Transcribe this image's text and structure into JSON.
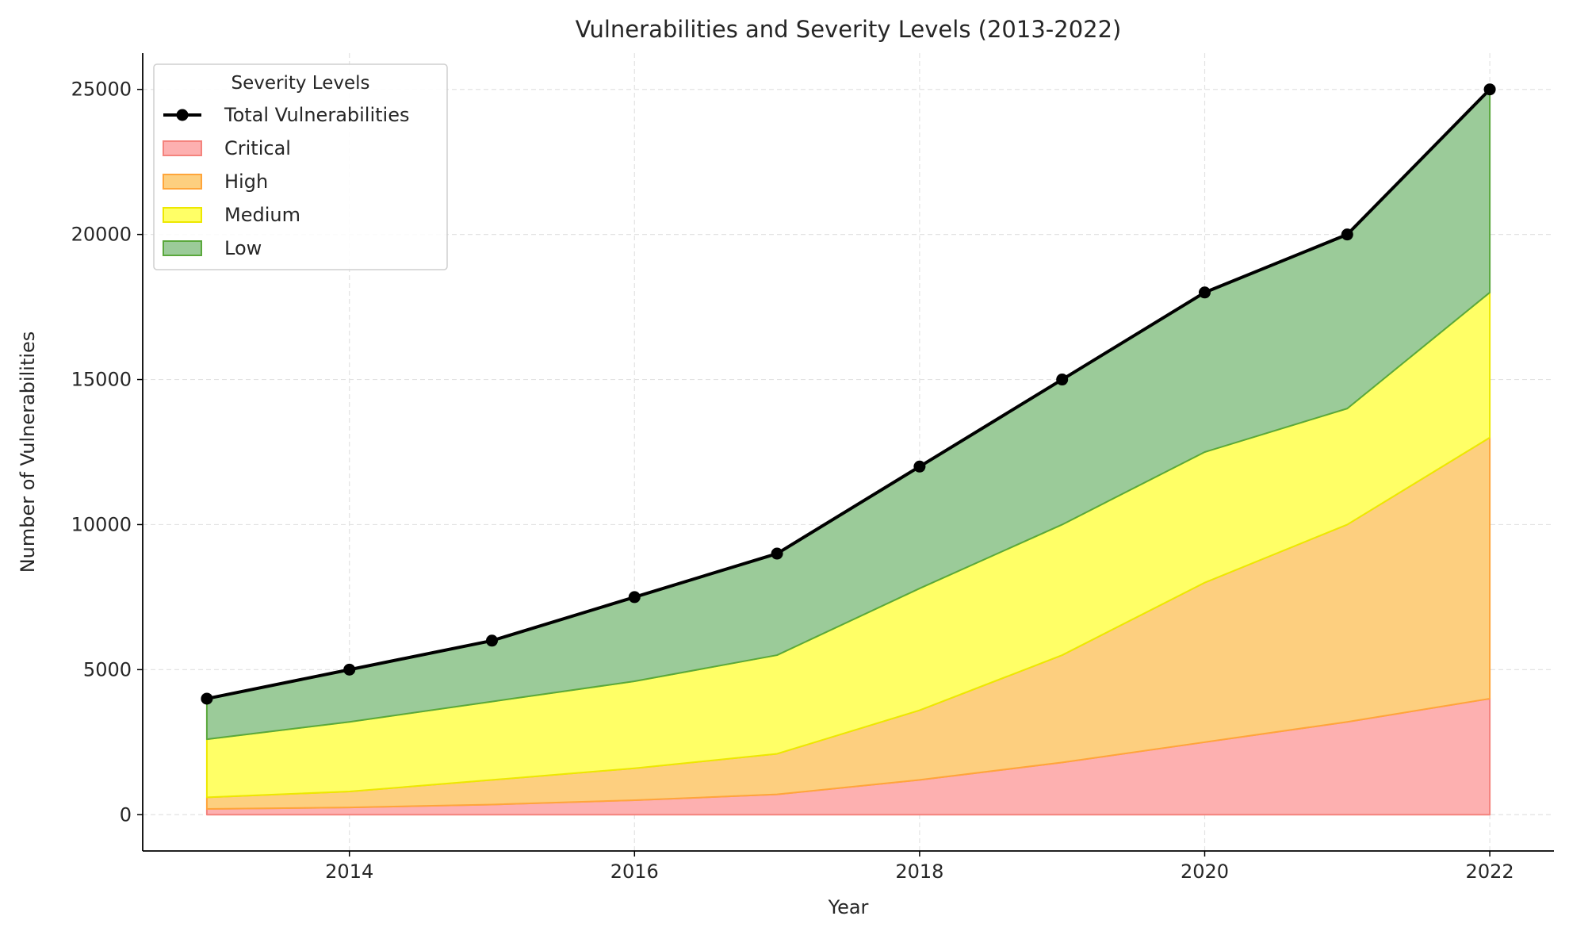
{
  "chart_data": {
    "type": "area",
    "stacked": true,
    "title": "Vulnerabilities and Severity Levels (2013-2022)",
    "xlabel": "Year",
    "ylabel": "Number of Vulnerabilities",
    "x": [
      2013,
      2014,
      2015,
      2016,
      2017,
      2018,
      2019,
      2020,
      2021,
      2022
    ],
    "xlim": [
      2012.55,
      2022.45
    ],
    "ylim": [
      -1250,
      26250
    ],
    "xticks": [
      2014,
      2016,
      2018,
      2020,
      2022
    ],
    "yticks": [
      0,
      5000,
      10000,
      15000,
      20000,
      25000
    ],
    "grid": true,
    "legend": {
      "title": "Severity Levels",
      "placement": "top-left"
    },
    "total_series": {
      "name": "Total Vulnerabilities",
      "color": "#000000",
      "values": [
        4000,
        5000,
        6000,
        7500,
        9000,
        12000,
        15000,
        18000,
        20000,
        25000
      ]
    },
    "series": [
      {
        "name": "Critical",
        "fill": "#fdb0b0",
        "stroke": "#f4837d",
        "values": [
          200,
          250,
          350,
          500,
          700,
          1200,
          1800,
          2500,
          3200,
          4000
        ]
      },
      {
        "name": "High",
        "fill": "#fdcf7f",
        "stroke": "#ffa53a",
        "values": [
          400,
          550,
          850,
          1100,
          1400,
          2400,
          3700,
          5500,
          6800,
          9000
        ]
      },
      {
        "name": "Medium",
        "fill": "#ffff66",
        "stroke": "#ede800",
        "values": [
          2000,
          2400,
          2700,
          3000,
          3400,
          4200,
          4500,
          4500,
          4000,
          5000
        ]
      },
      {
        "name": "Low",
        "fill": "#9bcb99",
        "stroke": "#5aa83c",
        "values": [
          1400,
          1800,
          2100,
          2900,
          3500,
          4200,
          5000,
          5500,
          6000,
          7000
        ]
      }
    ]
  }
}
